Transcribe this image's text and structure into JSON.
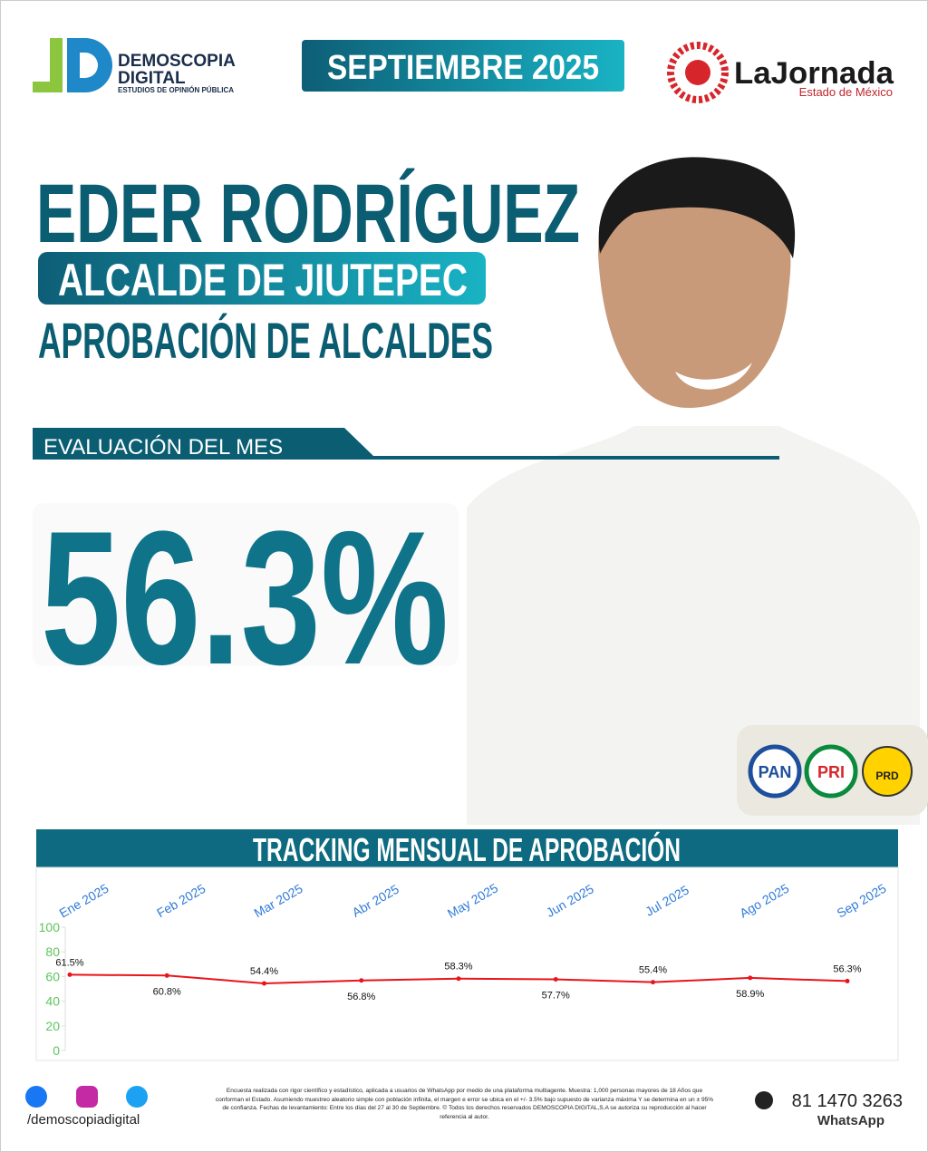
{
  "header": {
    "brand": "DEMOSCOPIA",
    "brand2": "DIGITAL",
    "brand_sub": "ESTUDIOS DE OPINIÓN PÚBLICA",
    "date": "SEPTIEMBRE 2025",
    "partner": "LaJornada",
    "partner_sub": "Estado de México"
  },
  "name": "EDER RODRÍGUEZ",
  "role": "ALCALDE DE JIUTEPEC",
  "subject": "APROBACIÓN DE ALCALDES",
  "eval_label": "EVALUACIÓN DEL MES",
  "eval_value": "56.3%",
  "parties": [
    "PAN",
    "PRI",
    "PRD"
  ],
  "chart_data": {
    "type": "line",
    "title": "TRACKING MENSUAL DE APROBACIÓN",
    "categories": [
      "Ene 2025",
      "Feb 2025",
      "Mar 2025",
      "Abr 2025",
      "May 2025",
      "Jun 2025",
      "Jul 2025",
      "Ago 2025",
      "Sep 2025"
    ],
    "values": [
      61.5,
      60.8,
      54.4,
      56.8,
      58.3,
      57.7,
      55.4,
      58.9,
      56.3
    ],
    "value_labels": [
      "61.5%",
      "60.8%",
      "54.4%",
      "56.8%",
      "58.3%",
      "57.7%",
      "55.4%",
      "58.9%",
      "56.3%"
    ],
    "color": "#e8151b",
    "ylim": [
      0,
      100
    ],
    "yticks": [
      0,
      20,
      40,
      60,
      80,
      100
    ],
    "grid": false
  },
  "footer": {
    "social": "/demoscopiadigital",
    "disclaimer": "Encuesta realizada con rigor científico y estadístico, aplicada a usuarios de WhatsApp por medio de una plataforma multiagente. Muestra: 1,000 personas mayores de 18 Años que conforman el Estado. Asumiendo muestreo aleatorio simple con población infinita, el margen e error se ubica en el +/- 3.5% bajo supuesto de varianza máxima Y se determina en un ± 95% de confianza. Fechas de levantamiento: Entre los días del 27 al 30 de Septiembre. © Todos los derechos reservados DEMOSCOPIA DIGITAL,S.A se autoriza su reproducción al hacer referencia al autor.",
    "phone": "81 1470 3263",
    "phone_label": "WhatsApp"
  }
}
